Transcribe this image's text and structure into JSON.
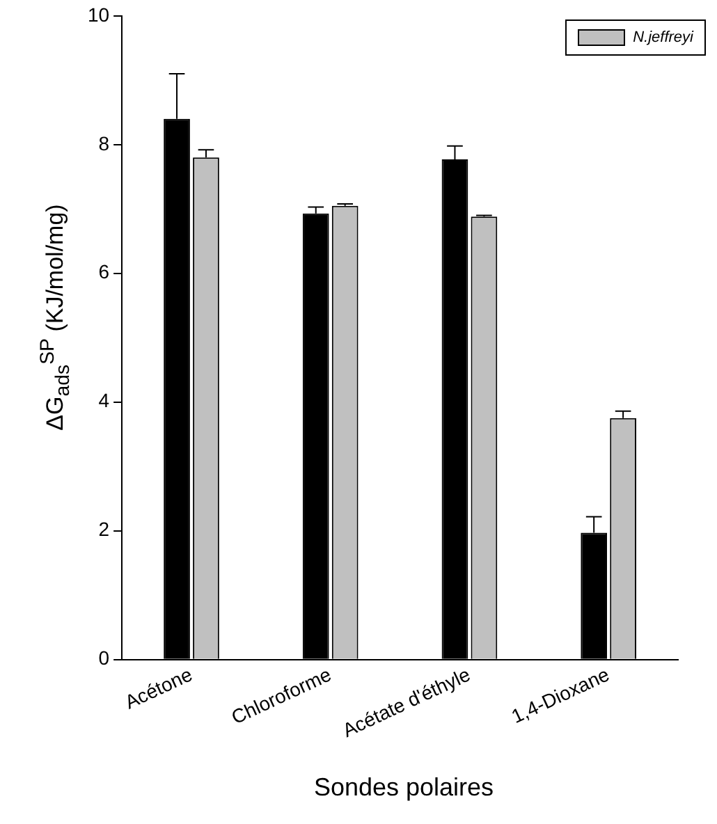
{
  "chart_data": {
    "type": "bar",
    "xlabel": "Sondes polaires",
    "ylabel": "ΔG$_{ads}$$^{SP}$ (KJ/mol/mg)",
    "categories": [
      "Acétone",
      "Chloroforme",
      "Acétate d'éthyle",
      "1,4-Dioxane"
    ],
    "series": [
      {
        "color": "#000000",
        "values": [
          8.4,
          6.93,
          7.77,
          1.97
        ],
        "errors": [
          [
            8.4,
            9.1
          ],
          [
            6.93,
            7.03
          ],
          [
            7.77,
            7.98
          ],
          [
            1.97,
            2.22
          ]
        ]
      },
      {
        "name": "N.jeffreyi",
        "color": "#c0c0c0",
        "values": [
          7.8,
          7.05,
          6.88,
          3.75
        ],
        "errors": [
          [
            7.8,
            7.92
          ],
          [
            7.05,
            7.08
          ],
          [
            6.88,
            6.9
          ],
          [
            3.75,
            3.86
          ]
        ]
      }
    ],
    "ylim": [
      0,
      10
    ],
    "yticks": [
      0,
      2,
      4,
      6,
      8,
      10
    ],
    "grid": false,
    "legend": "top right"
  }
}
